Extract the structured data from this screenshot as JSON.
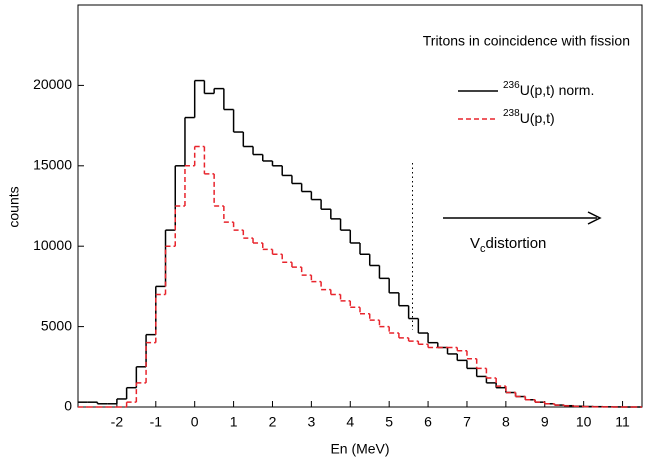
{
  "chart_data": {
    "type": "step",
    "title": "Tritons in coincidence with fission",
    "x_label": "En (MeV)",
    "y_label": "counts",
    "annotation": "Vcdistortion",
    "marker_x": 5.6,
    "x": [
      -3,
      -2.75,
      -2.5,
      -2.25,
      -2,
      -1.75,
      -1.5,
      -1.25,
      -1,
      -0.75,
      -0.5,
      -0.25,
      0,
      0.25,
      0.5,
      0.75,
      1,
      1.25,
      1.5,
      1.75,
      2,
      2.25,
      2.5,
      2.75,
      3,
      3.25,
      3.5,
      3.75,
      4,
      4.25,
      4.5,
      4.75,
      5,
      5.25,
      5.5,
      5.75,
      6,
      6.25,
      6.5,
      6.75,
      7,
      7.25,
      7.5,
      7.75,
      8,
      8.25,
      8.5,
      8.75,
      9,
      9.25,
      9.5,
      9.75,
      10,
      10.25,
      10.5,
      10.75,
      11,
      11.25
    ],
    "bin_width": 0.25,
    "series": [
      {
        "name": "236U(p,t) norm.",
        "color": "#000000",
        "dash": false,
        "values": [
          300,
          300,
          200,
          200,
          500,
          1200,
          2500,
          4500,
          7500,
          11000,
          15000,
          18000,
          20300,
          19500,
          19800,
          18500,
          17100,
          16200,
          15700,
          15300,
          15000,
          14400,
          13900,
          13400,
          12900,
          12300,
          11700,
          11000,
          10200,
          9500,
          8800,
          8000,
          7100,
          6300,
          5500,
          4600,
          4000,
          3700,
          3300,
          2900,
          2400,
          1900,
          1500,
          1200,
          900,
          650,
          450,
          300,
          200,
          120,
          80,
          50,
          30,
          20,
          10,
          5,
          0,
          0
        ]
      },
      {
        "name": "238U(p,t)",
        "color": "#e8242c",
        "dash": true,
        "values": [
          0,
          0,
          0,
          0,
          0,
          300,
          1500,
          4000,
          7000,
          10000,
          12500,
          15000,
          16200,
          14500,
          12500,
          11500,
          11000,
          10500,
          10200,
          9800,
          9500,
          9000,
          8700,
          8200,
          7800,
          7300,
          7000,
          6600,
          6200,
          5800,
          5400,
          5000,
          4600,
          4300,
          4100,
          3900,
          3700,
          3700,
          3700,
          3500,
          3000,
          2400,
          1800,
          1300,
          900,
          650,
          450,
          300,
          200,
          120,
          70,
          40,
          20,
          10,
          5,
          0,
          0,
          0
        ]
      }
    ],
    "xlim": [
      -3,
      11.5
    ],
    "ylim": [
      0,
      25000
    ],
    "xticks": [
      -2,
      -1,
      0,
      1,
      2,
      3,
      4,
      5,
      6,
      7,
      8,
      9,
      10,
      11
    ],
    "yticks": [
      0,
      5000,
      10000,
      15000,
      20000
    ]
  }
}
